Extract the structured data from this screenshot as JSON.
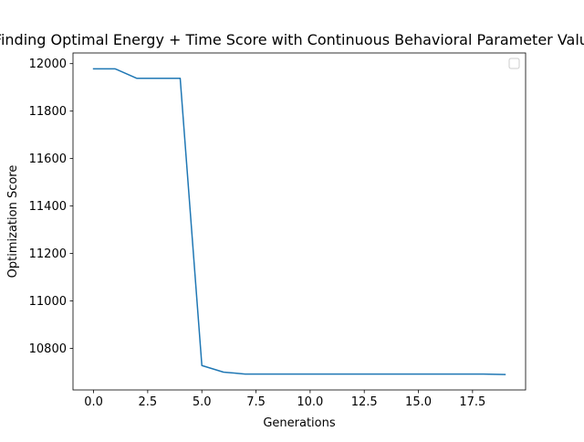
{
  "chart_data": {
    "type": "line",
    "title": "Finding Optimal Energy + Time Score with Continuous Behavioral Parameter Values",
    "xlabel": "Generations",
    "ylabel": "Optimization Score",
    "xlim": [
      -0.95,
      19.95
    ],
    "ylim": [
      10625,
      12045
    ],
    "x_ticks": [
      0,
      2.5,
      5,
      7.5,
      10,
      12.5,
      15,
      17.5
    ],
    "x_tick_labels": [
      "0.0",
      "2.5",
      "5.0",
      "7.5",
      "10.0",
      "12.5",
      "15.0",
      "17.5"
    ],
    "y_ticks": [
      10800,
      11000,
      11200,
      11400,
      11600,
      11800,
      12000
    ],
    "y_tick_labels": [
      "10800",
      "11000",
      "11200",
      "11400",
      "11600",
      "11800",
      "12000"
    ],
    "grid": false,
    "legend": "top-right (empty)",
    "series": [
      {
        "color": "#1f77b4",
        "x": [
          0,
          1,
          2,
          3,
          4,
          5,
          6,
          7,
          8,
          9,
          10,
          11,
          12,
          13,
          14,
          15,
          16,
          17,
          18,
          19
        ],
        "values": [
          11978,
          11978,
          11938,
          11938,
          11938,
          10728,
          10700,
          10692,
          10692,
          10692,
          10692,
          10692,
          10692,
          10692,
          10692,
          10692,
          10692,
          10692,
          10692,
          10690
        ]
      }
    ]
  }
}
